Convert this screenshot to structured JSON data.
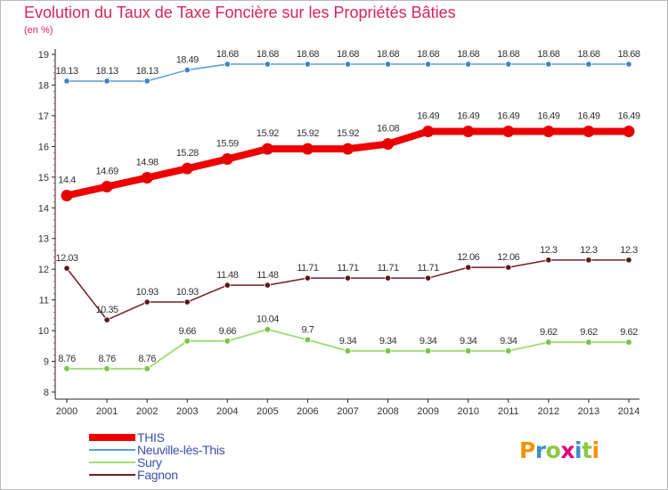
{
  "header": {
    "title": "Evolution du Taux de Taxe Foncière sur les Propriétés Bâties",
    "unit": "(en %)"
  },
  "logo": {
    "letters": [
      "P",
      "r",
      "o",
      "x",
      "i",
      "t",
      "i"
    ],
    "colors": [
      "#f29400",
      "#3d8fcb",
      "#8dc63f",
      "#e2007a",
      "#3d8fcb",
      "#8dc63f",
      "#f29400"
    ]
  },
  "chart_data": {
    "type": "line",
    "title": "Evolution du Taux de Taxe Foncière sur les Propriétés Bâties",
    "ylabel": "(en %)",
    "xlabel": "",
    "ylim": [
      8,
      19
    ],
    "yticks": [
      "8",
      "9",
      "10",
      "11",
      "12",
      "13",
      "14",
      "15",
      "16",
      "17",
      "18",
      "19"
    ],
    "categories": [
      "2000",
      "2001",
      "2002",
      "2003",
      "2004",
      "2005",
      "2006",
      "2007",
      "2008",
      "2009",
      "2010",
      "2011",
      "2012",
      "2013",
      "2014"
    ],
    "series": [
      {
        "name": "THIS",
        "color": "#ee0000",
        "marker": "#e60000",
        "weight": "bold",
        "values": [
          14.4,
          14.69,
          14.98,
          15.28,
          15.59,
          15.92,
          15.92,
          15.92,
          16.08,
          16.49,
          16.49,
          16.49,
          16.49,
          16.49,
          16.49
        ],
        "labels": [
          "14.4",
          "14.69",
          "14.98",
          "15.28",
          "15.59",
          "15.92",
          "15.92",
          "15.92",
          "16.08",
          "16.49",
          "16.49",
          "16.49",
          "16.49",
          "16.49",
          "16.49"
        ]
      },
      {
        "name": "Neuville-lès-This",
        "color": "#5c9dd6",
        "marker": "#3c82c8",
        "weight": "thin",
        "values": [
          18.13,
          18.13,
          18.13,
          18.49,
          18.68,
          18.68,
          18.68,
          18.68,
          18.68,
          18.68,
          18.68,
          18.68,
          18.68,
          18.68,
          18.68
        ],
        "labels": [
          "18.13",
          "18.13",
          "18.13",
          "18.49",
          "18.68",
          "18.68",
          "18.68",
          "18.68",
          "18.68",
          "18.68",
          "18.68",
          "18.68",
          "18.68",
          "18.68",
          "18.68"
        ]
      },
      {
        "name": "Sury",
        "color": "#a3dc7c",
        "marker": "#7cc449",
        "weight": "medium",
        "values": [
          8.76,
          8.76,
          8.76,
          9.66,
          9.66,
          10.04,
          9.7,
          9.34,
          9.34,
          9.34,
          9.34,
          9.34,
          9.62,
          9.62,
          9.62
        ],
        "labels": [
          "8.76",
          "8.76",
          "8.76",
          "9.66",
          "9.66",
          "10.04",
          "9.7",
          "9.34",
          "9.34",
          "9.34",
          "9.34",
          "9.34",
          "9.62",
          "9.62",
          "9.62"
        ]
      },
      {
        "name": "Fagnon",
        "color": "#6e1f24",
        "marker": "#5a151a",
        "weight": "thin",
        "values": [
          12.03,
          10.35,
          10.93,
          10.93,
          11.48,
          11.48,
          11.71,
          11.71,
          11.71,
          11.71,
          12.06,
          12.06,
          12.3,
          12.3,
          12.3
        ],
        "labels": [
          "12.03",
          "10.35",
          "10.93",
          "10.93",
          "11.48",
          "11.48",
          "11.71",
          "11.71",
          "11.71",
          "11.71",
          "12.06",
          "12.06",
          "12.3",
          "12.3",
          "12.3"
        ]
      }
    ],
    "legend": "bottom-left",
    "grid": false
  }
}
